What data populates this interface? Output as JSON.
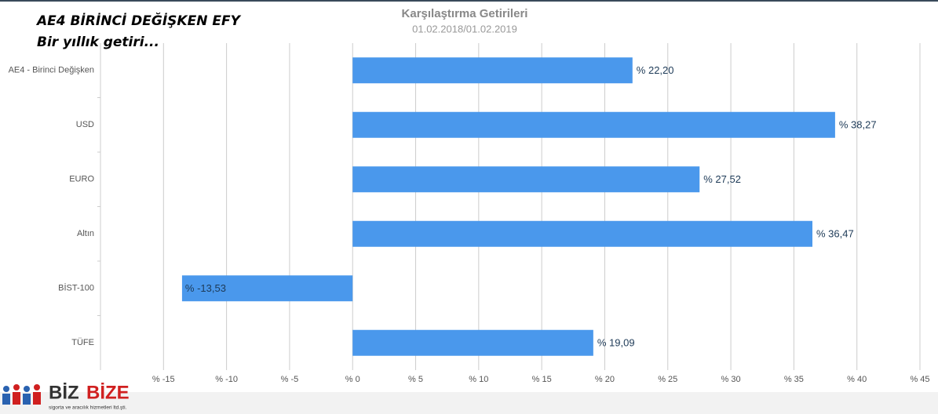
{
  "chart_data": {
    "type": "hbar",
    "title": "Karşılaştırma Getirileri",
    "subtitle": "01.02.2018/01.02.2019",
    "annotations": [
      "AE4 BİRİNCİ DEĞİŞKEN EFY",
      "Bir yıllık getiri..."
    ],
    "logo": {
      "part1": "BİZ",
      "part2": "BİZE",
      "tagline": "sigorta ve aracılık hizmetleri ltd.şti."
    },
    "categories": [
      "AE4 - Birinci Değişken",
      "USD",
      "EURO",
      "Altın",
      "BİST-100",
      "TÜFE"
    ],
    "values": [
      22.2,
      38.27,
      27.52,
      36.47,
      -13.53,
      19.09
    ],
    "value_labels": [
      "% 22,20",
      "% 38,27",
      "% 27,52",
      "% 36,47",
      "% -13,53",
      "% 19,09"
    ],
    "color": "#4a98ec",
    "xlim": [
      -20,
      45
    ],
    "xticks": [
      {
        "value": -15,
        "label": "% -15"
      },
      {
        "value": -10,
        "label": "% -10"
      },
      {
        "value": -5,
        "label": "% -5"
      },
      {
        "value": 0,
        "label": "% 0"
      },
      {
        "value": 5,
        "label": "% 5"
      },
      {
        "value": 10,
        "label": "% 10"
      },
      {
        "value": 15,
        "label": "% 15"
      },
      {
        "value": 20,
        "label": "% 20"
      },
      {
        "value": 25,
        "label": "% 25"
      },
      {
        "value": 30,
        "label": "% 30"
      },
      {
        "value": 35,
        "label": "% 35"
      },
      {
        "value": 40,
        "label": "% 40"
      },
      {
        "value": 45,
        "label": "% 45"
      }
    ],
    "grid": true
  }
}
